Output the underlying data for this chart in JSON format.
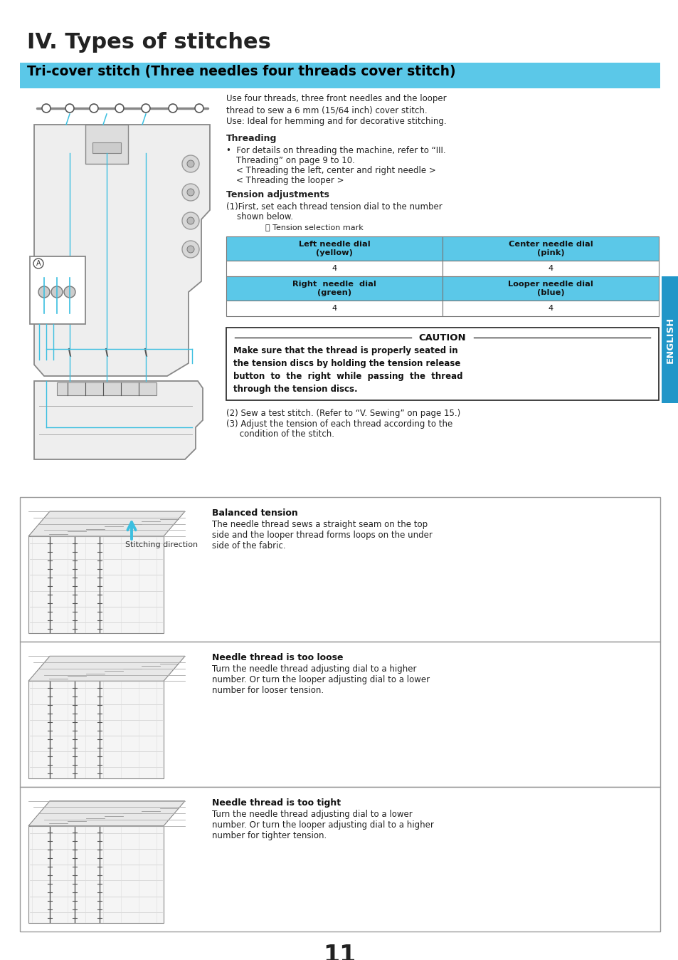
{
  "page_bg": "#ffffff",
  "title": "IV. Types of stitches",
  "section_header": "Tri-cover stitch (Three needles four threads cover stitch)",
  "section_header_bg": "#5bc8e8",
  "body_text_color": "#222222",
  "desc_text": "Use four threads, three front needles and the looper\nthread to sew a 6 mm (15/64 inch) cover stitch.\nUse: Ideal for hemming and for decorative stitching.",
  "threading_header": "Threading",
  "threading_bullet1": "For details on threading the machine, refer to “III.",
  "threading_bullet2": "Threading” on page 9 to 10.",
  "threading_sub1": "< Threading the left, center and right needle >",
  "threading_sub2": "< Threading the looper >",
  "tension_header": "Tension adjustments",
  "tension_step1a": "(1)First, set each thread tension dial to the number",
  "tension_step1b": "    shown below.",
  "tension_mark": "Ⓐ Tension selection mark",
  "table_header_bg": "#5bc8e8",
  "table_data": [
    [
      "Left needle dial\n(yellow)",
      "Center needle dial\n(pink)"
    ],
    [
      "4",
      "4"
    ],
    [
      "Right  needle  dial\n(green)",
      "Looper needle dial\n(blue)"
    ],
    [
      "4",
      "4"
    ]
  ],
  "caution_title": "CAUTION",
  "caution_text": "Make sure that the thread is properly seated in\nthe tension discs by holding the tension release\nbutton  to  the  right  while  passing  the  thread\nthrough the tension discs.",
  "step2": "(2) Sew a test stitch. (Refer to “V. Sewing” on page 15.)",
  "step3a": "(3) Adjust the tension of each thread according to the",
  "step3b": "     condition of the stitch.",
  "balanced_header": "Balanced tension",
  "balanced_text": "The needle thread sews a straight seam on the top\nside and the looper thread forms loops on the under\nside of the fabric.",
  "stitching_direction": "Stitching direction",
  "needle_loose_header": "Needle thread is too loose",
  "needle_loose_text": "Turn the needle thread adjusting dial to a higher\nnumber. Or turn the looper adjusting dial to a lower\nnumber for looser tension.",
  "needle_tight_header": "Needle thread is too tight",
  "needle_tight_text": "Turn the needle thread adjusting dial to a lower\nnumber. Or turn the looper adjusting dial to a higher\nnumber for tighter tension.",
  "english_sidebar_bg": "#2196C8",
  "english_sidebar_text": "ENGLISH",
  "page_number": "11",
  "thread_color": "#3BBFE0"
}
